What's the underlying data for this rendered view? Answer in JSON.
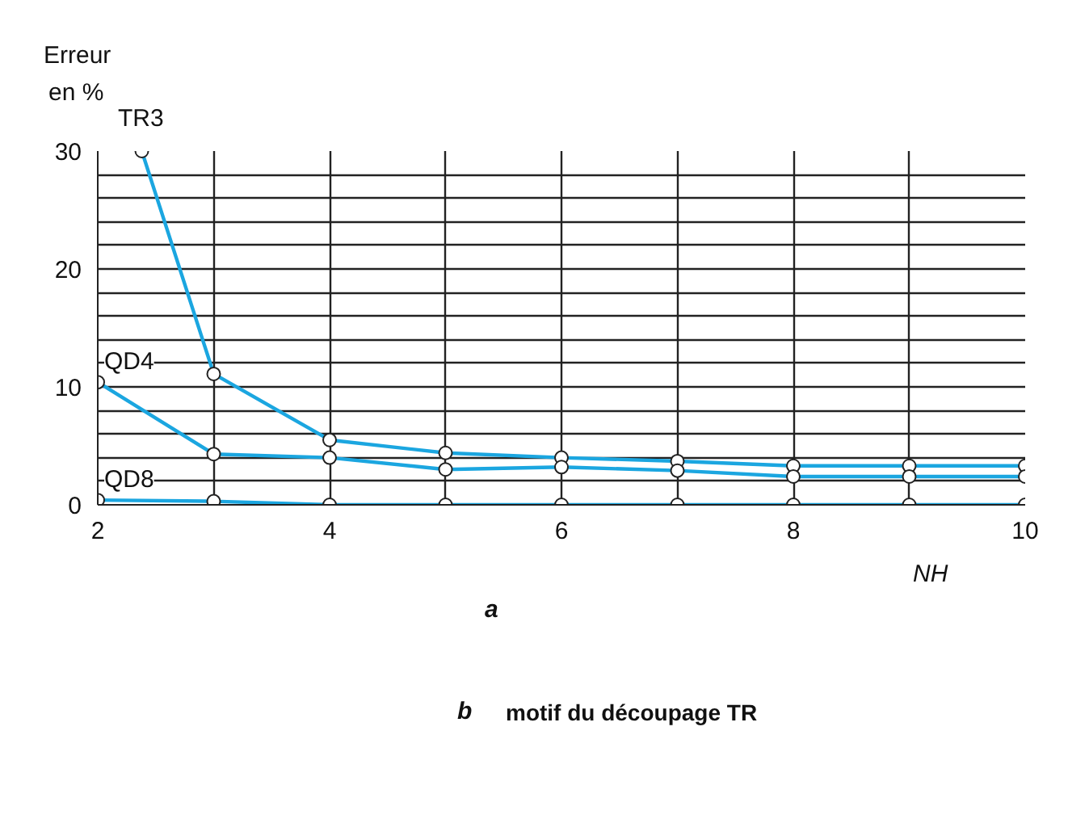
{
  "chart_data": {
    "type": "line",
    "ylabel": "Erreur\nen %",
    "xlabel": "NH",
    "xlim": [
      2,
      10
    ],
    "ylim": [
      0,
      30
    ],
    "xticks": [
      2,
      {
        "value": 3,
        "label": null
      },
      4,
      {
        "value": 5,
        "label": null
      },
      6,
      {
        "value": 7,
        "label": null
      },
      8,
      {
        "value": 9,
        "label": null
      },
      10
    ],
    "yticks": [
      0,
      {
        "value": 2,
        "label": null
      },
      {
        "value": 4,
        "label": null
      },
      {
        "value": 6,
        "label": null
      },
      {
        "value": 8,
        "label": null
      },
      10,
      {
        "value": 12,
        "label": null
      },
      {
        "value": 14,
        "label": null
      },
      {
        "value": 16,
        "label": null
      },
      {
        "value": 18,
        "label": null
      },
      20,
      {
        "value": 22,
        "label": null
      },
      {
        "value": 24,
        "label": null
      },
      {
        "value": 26,
        "label": null
      },
      {
        "value": 28,
        "label": null
      },
      30
    ],
    "grid": true,
    "marker": "circle",
    "line_style": "solid",
    "series": [
      {
        "name": "TR3",
        "color": "#1ba6e0",
        "x": [
          2.38,
          3,
          4,
          5,
          6,
          7,
          8,
          9,
          10
        ],
        "values": [
          30,
          11.1,
          5.5,
          4.4,
          4.0,
          3.7,
          3.3,
          3.3,
          3.3
        ]
      },
      {
        "name": "QD4",
        "color": "#1ba6e0",
        "x": [
          2,
          3,
          4,
          5,
          6,
          7,
          8,
          9,
          10
        ],
        "values": [
          10.4,
          4.3,
          4.0,
          3.0,
          3.2,
          2.9,
          2.4,
          2.4,
          2.4
        ]
      },
      {
        "name": "QD8",
        "color": "#1ba6e0",
        "x": [
          2,
          3,
          4,
          5,
          6,
          7,
          8,
          9,
          10
        ],
        "values": [
          0.4,
          0.3,
          0,
          0,
          0,
          0,
          0,
          0,
          0
        ]
      }
    ],
    "annotations": [
      "a",
      "b",
      "motif du découpage TR"
    ]
  }
}
